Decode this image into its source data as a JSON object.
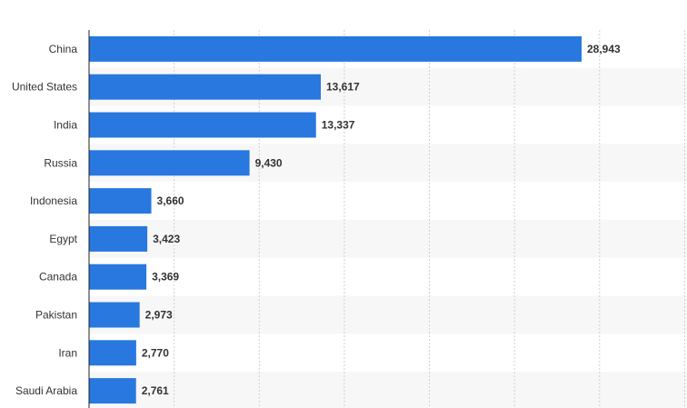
{
  "chart_data": {
    "type": "bar",
    "orientation": "horizontal",
    "categories": [
      "China",
      "United States",
      "India",
      "Russia",
      "Indonesia",
      "Egypt",
      "Canada",
      "Pakistan",
      "Iran",
      "Saudi Arabia"
    ],
    "values": [
      28943,
      13617,
      13337,
      9430,
      3660,
      3423,
      3369,
      2973,
      2770,
      2761
    ],
    "value_labels": [
      "28,943",
      "13,617",
      "13,337",
      "9,430",
      "3,660",
      "3,423",
      "3,369",
      "2,973",
      "2,770",
      "2,761"
    ],
    "title": "",
    "xlabel": "",
    "ylabel": "",
    "xlim": [
      0,
      35000
    ],
    "grid": true,
    "legend": "none",
    "colors": {
      "bar": "#2878e0",
      "grid": "#d0d0d0",
      "band": "#f7f7f7",
      "axis": "#222222",
      "text": "#333333"
    }
  }
}
